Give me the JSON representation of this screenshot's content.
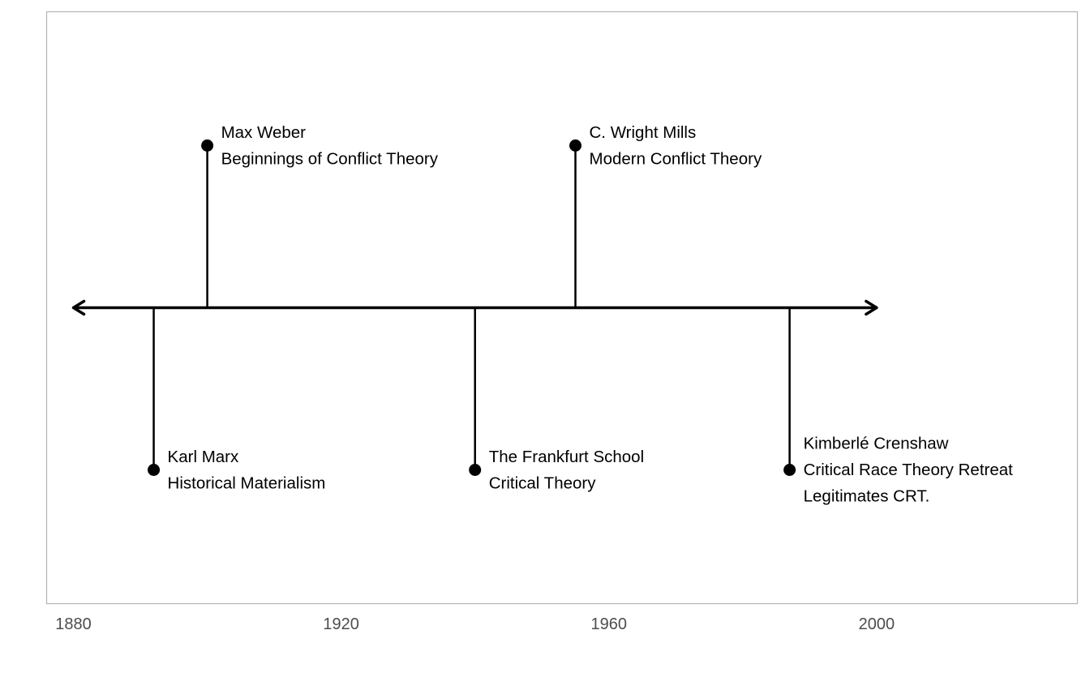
{
  "chart_data": {
    "type": "timeline",
    "title": "",
    "xlabel": "",
    "ylabel": "",
    "x_ticks": [
      1880,
      1920,
      1960,
      2000
    ],
    "xlim": [
      1876,
      2030
    ],
    "axis_range": [
      1880,
      2000
    ],
    "grid": false,
    "legend": "none",
    "colors": {
      "line": "#000000",
      "panel_border": "#b3b3b3",
      "tick_text": "#4d4d4d",
      "background": "#ffffff"
    },
    "events": [
      {
        "year": 1892,
        "side": "below",
        "level": 1.0,
        "lines": [
          "Karl Marx",
          "Historical Materialism"
        ]
      },
      {
        "year": 1900,
        "side": "above",
        "level": 1.0,
        "lines": [
          "Max Weber",
          "Beginnings of Conflict Theory"
        ]
      },
      {
        "year": 1940,
        "side": "below",
        "level": 1.0,
        "lines": [
          "The Frankfurt School",
          "Critical Theory"
        ]
      },
      {
        "year": 1955,
        "side": "above",
        "level": 1.0,
        "lines": [
          "C. Wright Mills",
          "Modern Conflict Theory"
        ]
      },
      {
        "year": 1987,
        "side": "below",
        "level": 1.0,
        "lines": [
          "Kimberlé Crenshaw",
          "Critical Race Theory Retreat",
          "Legitimates CRT."
        ]
      }
    ]
  }
}
